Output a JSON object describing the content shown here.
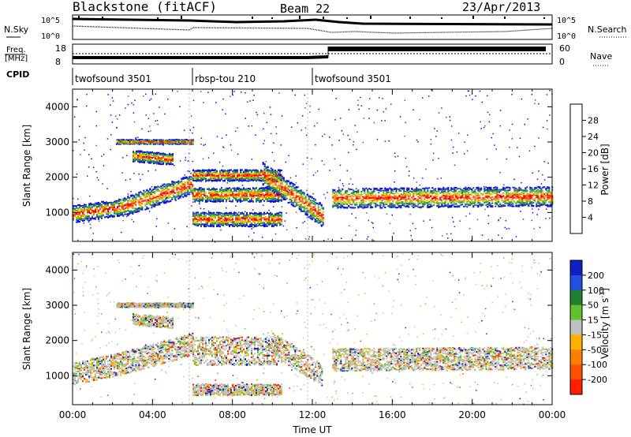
{
  "header": {
    "station": "Blackstone (fitACF)",
    "beam": "Beam 22",
    "date": "23/Apr/2013"
  },
  "status_panel": {
    "nsky_label": "N.Sky",
    "nsky_ticks": [
      "10^5",
      "10^0"
    ],
    "nsearch_label": "N.Search",
    "nsearch_ticks": [
      "10^5",
      "10^0"
    ],
    "freq_label": "Freq.",
    "freq_unit": "[MHz]",
    "freq_ticks": [
      "18",
      "8"
    ],
    "nave_label": "Nave",
    "nave_ticks": [
      "60",
      "0"
    ],
    "cpid_label": "CPID",
    "cpid_segments": [
      {
        "name": "twofsound 3501",
        "start_hour": 0,
        "end_hour": 6
      },
      {
        "name": "rbsp-tou 210",
        "start_hour": 6,
        "end_hour": 12
      },
      {
        "name": "twofsound 3501",
        "start_hour": 12,
        "end_hour": 24
      }
    ]
  },
  "chart_data": [
    {
      "type": "heatmap",
      "name": "power",
      "ylabel": "Slant Range [km]",
      "ylim": [
        180,
        4500
      ],
      "yticks": [
        1000,
        2000,
        3000,
        4000
      ],
      "xlim": [
        0,
        24
      ],
      "colorbar_label": "Power [dB]",
      "colorbar_ticks": [
        4,
        8,
        12,
        16,
        20,
        24,
        28
      ],
      "colorbar_colors": [
        "#0a00ff",
        "#2030a0",
        "#2a6890",
        "#208060",
        "#40a040",
        "#8ad010",
        "#f0d000",
        "#ff9000",
        "#ff5000",
        "#ff0000"
      ],
      "echo_bands": [
        {
          "start_hour": 0.0,
          "end_hour": 2.5,
          "center_start": 950,
          "center_end": 1150,
          "width": 300
        },
        {
          "start_hour": 2.5,
          "end_hour": 6.0,
          "center_start": 1150,
          "center_end": 1800,
          "width": 350
        },
        {
          "start_hour": 2.2,
          "end_hour": 6.0,
          "center_start": 3000,
          "center_end": 3000,
          "width": 80
        },
        {
          "start_hour": 3.0,
          "end_hour": 5.0,
          "center_start": 2600,
          "center_end": 2500,
          "width": 200
        },
        {
          "start_hour": 6.0,
          "end_hour": 10.5,
          "center_start": 2050,
          "center_end": 2050,
          "width": 200
        },
        {
          "start_hour": 6.0,
          "end_hour": 10.5,
          "center_start": 1500,
          "center_end": 1500,
          "width": 250
        },
        {
          "start_hour": 6.0,
          "end_hour": 10.5,
          "center_start": 800,
          "center_end": 800,
          "width": 250
        },
        {
          "start_hour": 9.5,
          "end_hour": 12.5,
          "center_start": 2100,
          "center_end": 900,
          "width": 400
        },
        {
          "start_hour": 13.0,
          "end_hour": 24.0,
          "center_start": 1400,
          "center_end": 1450,
          "width": 350
        }
      ]
    },
    {
      "type": "heatmap",
      "name": "velocity",
      "ylabel": "Slant Range [km]",
      "ylim": [
        180,
        4500
      ],
      "yticks": [
        1000,
        2000,
        3000,
        4000
      ],
      "xlabel": "Time UT",
      "xlim": [
        0,
        24
      ],
      "xticks": [
        "00:00",
        "04:00",
        "08:00",
        "12:00",
        "16:00",
        "20:00",
        "00:00"
      ],
      "colorbar_label": "Velocity [m s^-1]",
      "colorbar_ticks": [
        "200",
        "100",
        "50",
        "15",
        "-15",
        "-50",
        "-100",
        "-200"
      ],
      "colorbar_colors": [
        "#1020c0",
        "#2050e0",
        "#208030",
        "#60c030",
        "#c0c0c0",
        "#ffb000",
        "#ff8000",
        "#ff5000",
        "#ff2000"
      ],
      "echo_bands": [
        {
          "start_hour": 0.0,
          "end_hour": 2.5,
          "center_start": 1050,
          "center_end": 1350,
          "width": 400
        },
        {
          "start_hour": 2.5,
          "end_hour": 6.0,
          "center_start": 1350,
          "center_end": 1900,
          "width": 400
        },
        {
          "start_hour": 2.2,
          "end_hour": 6.0,
          "center_start": 3000,
          "center_end": 3000,
          "width": 80
        },
        {
          "start_hour": 3.0,
          "end_hour": 5.0,
          "center_start": 2600,
          "center_end": 2500,
          "width": 200
        },
        {
          "start_hour": 6.0,
          "end_hour": 10.5,
          "center_start": 1700,
          "center_end": 1700,
          "width": 500
        },
        {
          "start_hour": 6.0,
          "end_hour": 10.5,
          "center_start": 600,
          "center_end": 600,
          "width": 200
        },
        {
          "start_hour": 10.0,
          "end_hour": 12.5,
          "center_start": 1900,
          "center_end": 1000,
          "width": 400
        },
        {
          "start_hour": 13.0,
          "end_hour": 24.0,
          "center_start": 1450,
          "center_end": 1500,
          "width": 400
        }
      ]
    }
  ]
}
